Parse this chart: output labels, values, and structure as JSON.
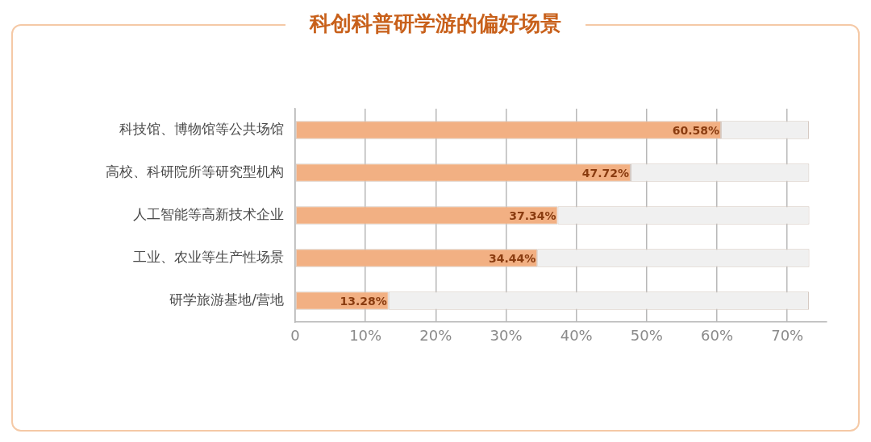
{
  "chart_data": {
    "type": "bar",
    "orientation": "horizontal",
    "stacked": true,
    "title": "科创科普研学游的偏好场景",
    "categories": [
      "科技馆、博物馆等公共场馆",
      "高校、科研院所等研究型机构",
      "人工智能等高新技术企业",
      "工业、农业等生产性场景",
      "研学旅游基地/营地"
    ],
    "series": [
      {
        "color": "#f2b083",
        "values": [
          60.58,
          47.72,
          37.34,
          34.44,
          13.28
        ],
        "value_labels": [
          "60.58%",
          "47.72%",
          "37.34%",
          "34.44%",
          "13.28%"
        ]
      },
      {
        "color": "#f0f0f0",
        "values": [
          12.5,
          25.4,
          35.8,
          38.7,
          59.8
        ]
      }
    ],
    "xlim": [
      0,
      75.6
    ],
    "xticks": [
      {
        "value": 0,
        "label": "0"
      },
      {
        "value": 10,
        "label": "10%"
      },
      {
        "value": 20,
        "label": "20%"
      },
      {
        "value": 30,
        "label": "30%"
      },
      {
        "value": 40,
        "label": "40%"
      },
      {
        "value": 50,
        "label": "50%"
      },
      {
        "value": 60,
        "label": "60%"
      },
      {
        "value": 70,
        "label": "70%"
      }
    ],
    "grid": "x",
    "legend": false
  }
}
